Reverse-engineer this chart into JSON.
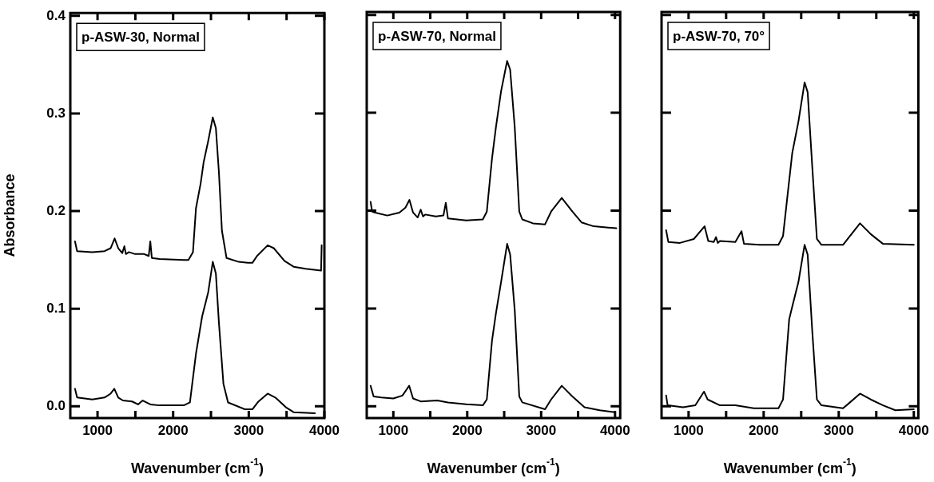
{
  "chart_data": [
    {
      "type": "line",
      "annotations": [
        "p-ASW-30, Normal"
      ],
      "xlabel": "Wavenumber (cm$^{-1}$)",
      "ylabel": "Absorbance",
      "xlim": [
        640,
        4000
      ],
      "ylim": [
        -0.012,
        0.403
      ],
      "xticks": [
        1000,
        {
          "value": 1500,
          "label": null
        },
        2000,
        {
          "value": 2500,
          "label": null
        },
        3000,
        {
          "value": 3500,
          "label": null
        },
        4000
      ],
      "yticks": [
        {
          "value": 0,
          "label": "0.0"
        },
        0.1,
        0.2,
        0.3,
        0.4
      ],
      "legend": false,
      "marker": "none",
      "line_style": "solid",
      "series": [
        {
          "color": "#000000",
          "x": [
            702,
            730,
            931,
            1093,
            1173,
            1226,
            1274,
            1327,
            1355,
            1375,
            1415,
            1496,
            1617,
            1677,
            1698,
            1718,
            1819,
            2141,
            2202,
            2262,
            2302,
            2363,
            2403,
            2464,
            2524,
            2565,
            2605,
            2645,
            2706,
            2867,
            2988,
            3048,
            3109,
            3250,
            3331,
            3472,
            3593,
            3754,
            3956,
            3964
          ],
          "values": [
            0.169,
            0.159,
            0.158,
            0.159,
            0.162,
            0.172,
            0.162,
            0.157,
            0.164,
            0.156,
            0.158,
            0.156,
            0.156,
            0.154,
            0.169,
            0.152,
            0.151,
            0.15,
            0.15,
            0.158,
            0.203,
            0.228,
            0.25,
            0.272,
            0.296,
            0.285,
            0.24,
            0.18,
            0.152,
            0.148,
            0.147,
            0.147,
            0.154,
            0.165,
            0.162,
            0.149,
            0.143,
            0.141,
            0.139,
            0.165
          ]
        },
        {
          "color": "#000000",
          "x": [
            702,
            730,
            931,
            1093,
            1173,
            1222,
            1274,
            1335,
            1456,
            1536,
            1597,
            1698,
            1819,
            2141,
            2222,
            2302,
            2383,
            2464,
            2524,
            2565,
            2605,
            2665,
            2726,
            2948,
            3048,
            3129,
            3250,
            3351,
            3492,
            3593,
            3875
          ],
          "values": [
            0.018,
            0.009,
            0.007,
            0.009,
            0.013,
            0.018,
            0.009,
            0.006,
            0.005,
            0.002,
            0.006,
            0.002,
            0.001,
            0.001,
            0.004,
            0.054,
            0.092,
            0.117,
            0.148,
            0.136,
            0.086,
            0.023,
            0.004,
            -0.003,
            -0.003,
            0.005,
            0.013,
            0.009,
            -0.001,
            -0.006,
            -0.007
          ]
        }
      ]
    },
    {
      "type": "line",
      "annotations": [
        "p-ASW-70, Normal"
      ],
      "xlabel": "Wavenumber (cm$^{-1}$)",
      "xlim": [
        640,
        4070
      ],
      "ylim": [
        -0.012,
        0.403
      ],
      "tick_labels": "x",
      "xticks": [
        1000,
        {
          "value": 1500,
          "label": null
        },
        2000,
        {
          "value": 2500,
          "label": null
        },
        3000,
        {
          "value": 3500,
          "label": null
        },
        4000
      ],
      "yticks": [
        0,
        0.1,
        0.2,
        0.3,
        0.4
      ],
      "legend": false,
      "marker": "none",
      "line_style": "solid",
      "series": [
        {
          "color": "#000000",
          "x": [
            692,
            713,
            754,
            918,
            1082,
            1164,
            1218,
            1267,
            1329,
            1370,
            1402,
            1431,
            1575,
            1678,
            1710,
            1739,
            1986,
            2211,
            2265,
            2335,
            2388,
            2458,
            2540,
            2581,
            2643,
            2704,
            2745,
            2889,
            3053,
            3135,
            3279,
            3423,
            3546,
            3710,
            4018
          ],
          "values": [
            0.209,
            0.199,
            0.198,
            0.195,
            0.198,
            0.203,
            0.211,
            0.198,
            0.193,
            0.201,
            0.194,
            0.196,
            0.194,
            0.195,
            0.208,
            0.192,
            0.19,
            0.191,
            0.199,
            0.253,
            0.285,
            0.322,
            0.353,
            0.344,
            0.285,
            0.199,
            0.191,
            0.187,
            0.186,
            0.199,
            0.213,
            0.199,
            0.188,
            0.184,
            0.182
          ]
        },
        {
          "color": "#000000",
          "x": [
            692,
            733,
            836,
            1000,
            1123,
            1214,
            1267,
            1370,
            1595,
            1739,
            1986,
            2211,
            2265,
            2335,
            2388,
            2458,
            2540,
            2581,
            2643,
            2704,
            2745,
            3053,
            3135,
            3279,
            3423,
            3587,
            3793,
            3998
          ],
          "values": [
            0.021,
            0.01,
            0.009,
            0.008,
            0.011,
            0.021,
            0.008,
            0.005,
            0.006,
            0.004,
            0.002,
            0.001,
            0.007,
            0.067,
            0.095,
            0.127,
            0.166,
            0.155,
            0.098,
            0.01,
            0.004,
            -0.003,
            0.007,
            0.021,
            0.01,
            -0.001,
            -0.004,
            -0.006
          ]
        }
      ]
    },
    {
      "type": "line",
      "annotations": [
        "p-ASW-70, 70°"
      ],
      "xlabel": "Wavenumber (cm$^{-1}$)",
      "xlim": [
        640,
        4060
      ],
      "ylim": [
        -0.012,
        0.403
      ],
      "tick_labels": "x",
      "xticks": [
        1000,
        {
          "value": 1500,
          "label": null
        },
        2000,
        {
          "value": 2500,
          "label": null
        },
        3000,
        {
          "value": 3500,
          "label": null
        },
        4000
      ],
      "yticks": [
        0,
        0.1,
        0.2,
        0.3,
        0.4
      ],
      "legend": false,
      "marker": "none",
      "line_style": "solid",
      "series": [
        {
          "color": "#000000",
          "x": [
            701,
            730,
            885,
            1070,
            1213,
            1262,
            1336,
            1365,
            1389,
            1418,
            1623,
            1705,
            1738,
            1951,
            2197,
            2258,
            2340,
            2381,
            2463,
            2545,
            2586,
            2648,
            2709,
            2770,
            3057,
            3119,
            3283,
            3426,
            3590,
            4000
          ],
          "values": [
            0.18,
            0.168,
            0.167,
            0.171,
            0.184,
            0.169,
            0.168,
            0.173,
            0.167,
            0.169,
            0.168,
            0.179,
            0.166,
            0.165,
            0.165,
            0.174,
            0.231,
            0.259,
            0.291,
            0.331,
            0.321,
            0.244,
            0.171,
            0.165,
            0.165,
            0.171,
            0.187,
            0.176,
            0.166,
            0.165
          ]
        },
        {
          "color": "#000000",
          "x": [
            701,
            721,
            926,
            1090,
            1205,
            1254,
            1418,
            1623,
            1869,
            2197,
            2258,
            2340,
            2381,
            2463,
            2545,
            2586,
            2648,
            2709,
            2770,
            3057,
            3119,
            3283,
            3426,
            3590,
            3754,
            4000
          ],
          "values": [
            0.011,
            0.001,
            -0.001,
            0.001,
            0.015,
            0.007,
            0.001,
            0.001,
            -0.002,
            -0.002,
            0.007,
            0.089,
            0.102,
            0.127,
            0.165,
            0.155,
            0.076,
            0.007,
            0.001,
            -0.002,
            0.002,
            0.013,
            0.007,
            0.001,
            -0.004,
            -0.003
          ]
        }
      ]
    }
  ]
}
